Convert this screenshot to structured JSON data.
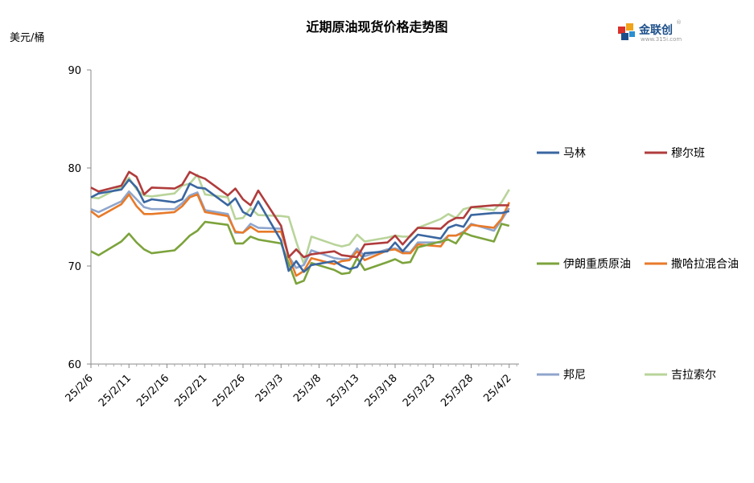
{
  "header": {
    "title": "近期原油现货价格走势图",
    "unit": "美元/桶",
    "logo_text": "金联创",
    "logo_sub": "www.315i.com",
    "logo_reg": "®"
  },
  "colors": {
    "马林": "#3a66a0",
    "穆尔班": "#b03c3c",
    "伊朗重质原油": "#7ca33c",
    "撒哈拉混合油": "#e87a2a",
    "邦尼": "#8fa6cc",
    "吉拉索尔": "#b9d49a"
  },
  "chart_data": {
    "type": "line",
    "title": "近期原油现货价格走势图",
    "ylabel": "美元/桶",
    "ylim": [
      60,
      90
    ],
    "yticks": [
      60,
      70,
      80,
      90
    ],
    "x_tick_labels": [
      "25/2/6",
      "25/2/11",
      "25/2/16",
      "25/2/21",
      "25/2/26",
      "25/3/3",
      "25/3/8",
      "25/3/13",
      "25/3/18",
      "25/3/23",
      "25/3/28",
      "25/4/2"
    ],
    "x": [
      "25/2/6",
      "25/2/7",
      "25/2/10",
      "25/2/11",
      "25/2/12",
      "25/2/13",
      "25/2/14",
      "25/2/17",
      "25/2/18",
      "25/2/19",
      "25/2/20",
      "25/2/21",
      "25/2/24",
      "25/2/25",
      "25/2/26",
      "25/2/27",
      "25/2/28",
      "25/3/3",
      "25/3/4",
      "25/3/5",
      "25/3/6",
      "25/3/7",
      "25/3/10",
      "25/3/11",
      "25/3/12",
      "25/3/13",
      "25/3/14",
      "25/3/17",
      "25/3/18",
      "25/3/19",
      "25/3/20",
      "25/3/21",
      "25/3/24",
      "25/3/25",
      "25/3/26",
      "25/3/27",
      "25/3/28",
      "25/3/31",
      "25/4/1",
      "25/4/2"
    ],
    "x_day_index": [
      0,
      1,
      4,
      5,
      6,
      7,
      8,
      11,
      12,
      13,
      14,
      15,
      18,
      19,
      20,
      21,
      22,
      25,
      26,
      27,
      28,
      29,
      32,
      33,
      34,
      35,
      36,
      39,
      40,
      41,
      42,
      43,
      46,
      47,
      48,
      49,
      50,
      53,
      54,
      55
    ],
    "series": [
      {
        "name": "马林",
        "values": [
          77.0,
          77.4,
          77.8,
          78.8,
          78.0,
          76.5,
          76.8,
          76.5,
          76.8,
          78.4,
          78.0,
          77.9,
          76.2,
          76.9,
          75.5,
          75.1,
          76.6,
          72.6,
          69.5,
          70.5,
          69.4,
          70.1,
          70.5,
          70.0,
          69.7,
          69.9,
          71.3,
          71.5,
          72.4,
          71.5,
          72.4,
          73.2,
          72.8,
          73.9,
          74.2,
          74.0,
          75.2,
          75.4,
          75.4,
          75.6
        ]
      },
      {
        "name": "穆尔班",
        "values": [
          78.0,
          77.6,
          78.2,
          79.6,
          79.1,
          77.3,
          78.0,
          77.9,
          78.3,
          79.6,
          79.2,
          78.9,
          77.2,
          77.9,
          76.8,
          76.2,
          77.7,
          74.1,
          70.9,
          71.7,
          70.9,
          71.2,
          71.5,
          71.1,
          71.0,
          70.9,
          72.2,
          72.4,
          73.1,
          72.2,
          73.1,
          73.9,
          73.8,
          74.5,
          74.9,
          74.9,
          76.0,
          76.2,
          76.2,
          76.2
        ]
      },
      {
        "name": "伊朗重质原油",
        "values": [
          71.5,
          71.1,
          72.5,
          73.3,
          72.4,
          71.7,
          71.3,
          71.6,
          72.3,
          73.1,
          73.6,
          74.5,
          74.2,
          72.3,
          72.3,
          73.0,
          72.7,
          72.3,
          70.3,
          68.2,
          68.5,
          70.3,
          69.6,
          69.2,
          69.3,
          70.8,
          69.6,
          70.4,
          70.7,
          70.3,
          70.4,
          71.9,
          72.5,
          72.7,
          72.3,
          73.4,
          73.1,
          72.5,
          74.3,
          74.1
        ]
      },
      {
        "name": "撒哈拉混合油",
        "values": [
          75.6,
          75.0,
          76.3,
          77.3,
          76.1,
          75.3,
          75.3,
          75.5,
          76.1,
          77.0,
          77.3,
          75.5,
          75.1,
          73.5,
          73.4,
          74.0,
          73.5,
          73.5,
          71.0,
          69.0,
          69.5,
          70.8,
          70.2,
          70.5,
          70.6,
          71.5,
          70.6,
          71.6,
          71.7,
          71.3,
          71.3,
          72.2,
          72.0,
          73.1,
          73.1,
          73.4,
          74.2,
          73.9,
          74.8,
          76.5
        ]
      },
      {
        "name": "邦尼",
        "values": [
          75.8,
          75.5,
          76.6,
          77.6,
          76.8,
          76.0,
          75.8,
          75.8,
          76.4,
          77.2,
          77.5,
          75.7,
          75.3,
          73.4,
          73.4,
          74.3,
          73.9,
          73.8,
          71.0,
          69.8,
          70.1,
          71.6,
          70.8,
          70.7,
          70.7,
          71.8,
          71.0,
          71.7,
          71.8,
          71.5,
          71.4,
          72.4,
          72.4,
          73.1,
          73.1,
          73.5,
          74.3,
          73.6,
          74.7,
          75.9
        ]
      },
      {
        "name": "吉拉索尔",
        "values": [
          77.0,
          76.9,
          78.1,
          79.0,
          77.8,
          77.2,
          77.1,
          77.4,
          78.2,
          78.4,
          79.3,
          77.3,
          77.0,
          74.8,
          74.9,
          75.9,
          75.2,
          75.1,
          75.0,
          72.5,
          70.2,
          73.0,
          72.2,
          72.0,
          72.2,
          73.2,
          72.5,
          72.9,
          73.1,
          73.0,
          73.0,
          73.9,
          74.8,
          75.3,
          74.9,
          75.8,
          76.0,
          75.7,
          76.5,
          77.8
        ]
      }
    ],
    "legend_layout": "right"
  }
}
